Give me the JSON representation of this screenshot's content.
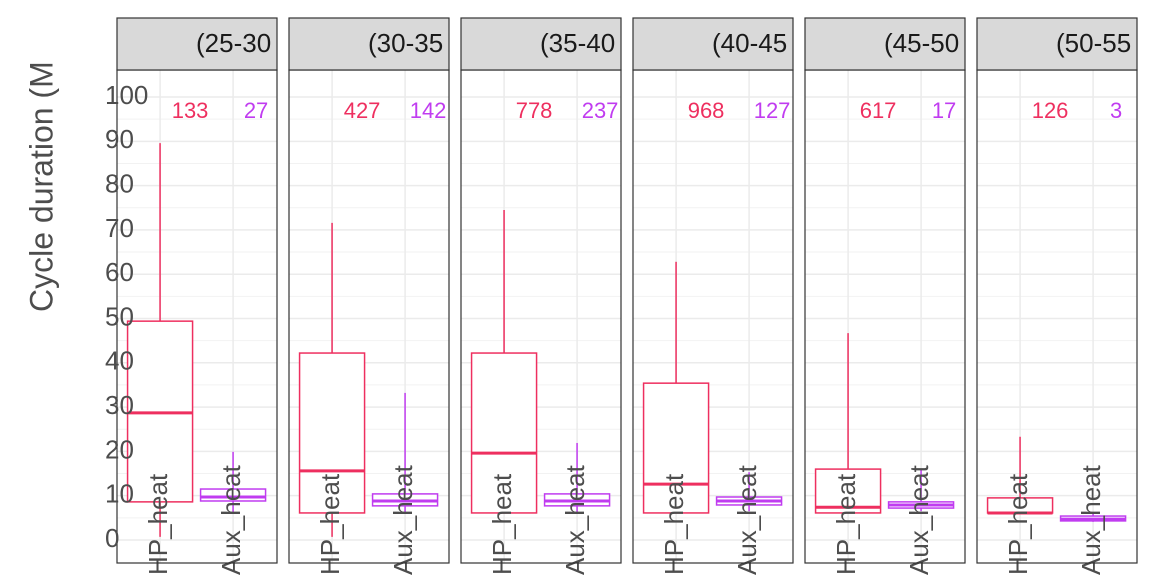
{
  "chart_data": {
    "type": "boxplot",
    "ylabel": "Cycle duration (M",
    "categories": [
      "HP_heat",
      "Aux_heat"
    ],
    "colors": [
      "#ee2f5f",
      "#c03cf0"
    ],
    "ylim": [
      -5.2,
      106.1
    ],
    "yticks": [
      0,
      10,
      20,
      30,
      40,
      50,
      60,
      70,
      80,
      90,
      100
    ],
    "grid": true,
    "facets": [
      {
        "label": "(25-30",
        "counts": [
          133,
          27
        ],
        "boxes": [
          {
            "min": 0.7,
            "q1": 8.6,
            "median": 28.7,
            "q3": 49.4,
            "max": 89.6
          },
          {
            "min": 6.3,
            "q1": 8.8,
            "median": 9.7,
            "q3": 11.5,
            "max": 19.9
          }
        ]
      },
      {
        "label": "(30-35",
        "counts": [
          427,
          142
        ],
        "boxes": [
          {
            "min": 0.7,
            "q1": 6.1,
            "median": 15.6,
            "q3": 42.2,
            "max": 71.6
          },
          {
            "min": 6.3,
            "q1": 7.7,
            "median": 8.8,
            "q3": 10.4,
            "max": 33.2
          }
        ]
      },
      {
        "label": "(35-40",
        "counts": [
          778,
          237
        ],
        "boxes": [
          {
            "min": 6.1,
            "q1": 6.1,
            "median": 19.6,
            "q3": 42.2,
            "max": 74.5
          },
          {
            "min": 6.1,
            "q1": 7.7,
            "median": 8.8,
            "q3": 10.4,
            "max": 21.9
          }
        ]
      },
      {
        "label": "(40-45",
        "counts": [
          968,
          127
        ],
        "boxes": [
          {
            "min": 6.1,
            "q1": 6.1,
            "median": 12.6,
            "q3": 35.4,
            "max": 62.8
          },
          {
            "min": 6.5,
            "q1": 7.9,
            "median": 8.8,
            "q3": 9.7,
            "max": 15.3
          }
        ]
      },
      {
        "label": "(45-50",
        "counts": [
          617,
          17
        ],
        "boxes": [
          {
            "min": 6.1,
            "q1": 6.1,
            "median": 7.4,
            "q3": 16.0,
            "max": 46.7
          },
          {
            "min": 6.5,
            "q1": 7.2,
            "median": 7.9,
            "q3": 8.6,
            "max": 15.8
          }
        ]
      },
      {
        "label": "(50-55",
        "counts": [
          126,
          3
        ],
        "boxes": [
          {
            "min": 6.1,
            "q1": 6.1,
            "median": 6.1,
            "q3": 9.5,
            "max": 23.3
          },
          {
            "min": 4.1,
            "q1": 4.3,
            "median": 4.7,
            "q3": 5.4,
            "max": 6.1
          }
        ]
      }
    ]
  }
}
